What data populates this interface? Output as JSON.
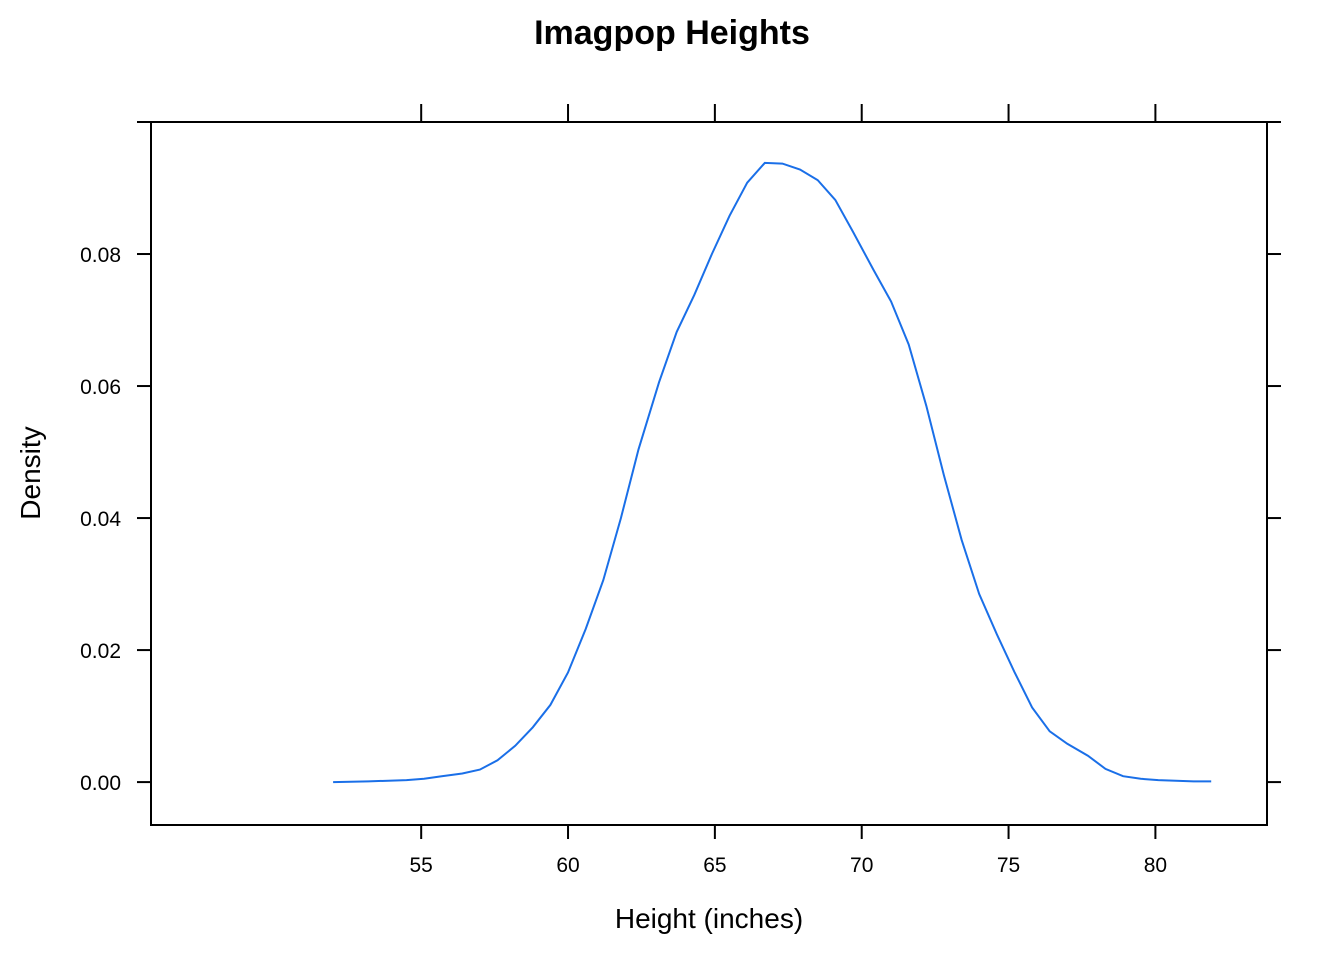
{
  "chart_data": {
    "type": "line",
    "title": "Imagpop Heights",
    "xlabel": "Height (inches)",
    "ylabel": "Density",
    "xlim": [
      45.8,
      83.8
    ],
    "ylim": [
      -0.0065,
      0.1
    ],
    "x_ticks": [
      55,
      60,
      65,
      70,
      75,
      80
    ],
    "x_tick_labels": [
      "55",
      "60",
      "65",
      "70",
      "75",
      "80"
    ],
    "y_ticks": [
      0.0,
      0.02,
      0.04,
      0.06,
      0.08
    ],
    "y_tick_labels": [
      "0.00",
      "0.02",
      "0.04",
      "0.06",
      "0.08"
    ],
    "grid": false,
    "line_color": "#1a6fe8",
    "series": [
      {
        "x": [
          52.0,
          53.2,
          54.5,
          55.1,
          55.7,
          56.4,
          57.0,
          57.6,
          58.2,
          58.8,
          59.4,
          60.0,
          60.6,
          61.2,
          61.8,
          62.4,
          63.1,
          63.7,
          64.3,
          64.9,
          65.5,
          66.1,
          66.7,
          67.3,
          67.9,
          68.5,
          69.1,
          69.7,
          70.4,
          71.0,
          71.6,
          72.2,
          72.8,
          73.4,
          74.0,
          74.6,
          75.2,
          75.8,
          76.4,
          77.0,
          77.7,
          78.3,
          78.9,
          79.5,
          80.1,
          80.7,
          81.3,
          81.9
        ],
        "y": [
          0.0,
          0.0001,
          0.0003,
          0.0005,
          0.0009,
          0.0013,
          0.0019,
          0.0033,
          0.0055,
          0.0083,
          0.0117,
          0.0166,
          0.0232,
          0.0306,
          0.04,
          0.0504,
          0.0606,
          0.0682,
          0.0738,
          0.08,
          0.0858,
          0.0908,
          0.0938,
          0.0937,
          0.0928,
          0.0912,
          0.0882,
          0.0834,
          0.0776,
          0.0728,
          0.0663,
          0.057,
          0.0465,
          0.0367,
          0.0285,
          0.0224,
          0.0167,
          0.0113,
          0.0077,
          0.0058,
          0.004,
          0.002,
          0.0009,
          0.0005,
          0.0003,
          0.0002,
          0.0001,
          0.0001
        ]
      }
    ]
  }
}
